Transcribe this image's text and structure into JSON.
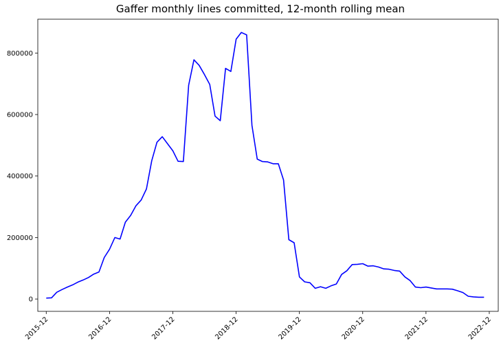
{
  "chart_data": {
    "type": "line",
    "title": "Gaffer monthly lines committed, 12-month rolling mean",
    "xlabel": "",
    "ylabel": "",
    "ylim": [
      -40000,
      910000
    ],
    "xlim_months": [
      -1.6,
      85.7
    ],
    "grid": false,
    "line_color": "#0000ff",
    "x_ticks": [
      {
        "label": "2015-12",
        "month": 0
      },
      {
        "label": "2016-12",
        "month": 12
      },
      {
        "label": "2017-12",
        "month": 24
      },
      {
        "label": "2018-12",
        "month": 36
      },
      {
        "label": "2019-12",
        "month": 48
      },
      {
        "label": "2020-12",
        "month": 60
      },
      {
        "label": "2021-12",
        "month": 72
      },
      {
        "label": "2022-12",
        "month": 84
      }
    ],
    "y_ticks": [
      0,
      200000,
      400000,
      600000,
      800000
    ],
    "series": [
      {
        "x": [
          "2015-12",
          "2016-01",
          "2016-02",
          "2016-03",
          "2016-04",
          "2016-05",
          "2016-06",
          "2016-07",
          "2016-08",
          "2016-09",
          "2016-10",
          "2016-11",
          "2016-12",
          "2017-01",
          "2017-02",
          "2017-03",
          "2017-04",
          "2017-05",
          "2017-06",
          "2017-07",
          "2017-08",
          "2017-09",
          "2017-10",
          "2017-11",
          "2017-12",
          "2018-01",
          "2018-02",
          "2018-03",
          "2018-04",
          "2018-05",
          "2018-06",
          "2018-07",
          "2018-08",
          "2018-09",
          "2018-10",
          "2018-11",
          "2018-12",
          "2019-01",
          "2019-02",
          "2019-03",
          "2019-04",
          "2019-05",
          "2019-06",
          "2019-07",
          "2019-08",
          "2019-09",
          "2019-10",
          "2019-11",
          "2019-12",
          "2020-01",
          "2020-02",
          "2020-03",
          "2020-04",
          "2020-05",
          "2020-06",
          "2020-07",
          "2020-08",
          "2020-09",
          "2020-10",
          "2020-11",
          "2020-12",
          "2021-01",
          "2021-02",
          "2021-03",
          "2021-04",
          "2021-05",
          "2021-06",
          "2021-07",
          "2021-08",
          "2021-09",
          "2021-10",
          "2021-11",
          "2021-12",
          "2022-01",
          "2022-02",
          "2022-03",
          "2022-04",
          "2022-05",
          "2022-06",
          "2022-07",
          "2022-08",
          "2022-09",
          "2022-10",
          "2022-11"
        ],
        "values": [
          3000,
          4000,
          22000,
          31000,
          39000,
          46000,
          55000,
          62000,
          70000,
          81000,
          88000,
          135000,
          162000,
          200000,
          195000,
          250000,
          272000,
          303000,
          322000,
          358000,
          450000,
          510000,
          528000,
          505000,
          482000,
          448000,
          447000,
          695000,
          778000,
          760000,
          730000,
          698000,
          595000,
          580000,
          750000,
          740000,
          845000,
          867000,
          859000,
          565000,
          455000,
          447000,
          446000,
          440000,
          440000,
          387000,
          193000,
          183000,
          72000,
          56000,
          53000,
          35000,
          40000,
          35000,
          43000,
          49000,
          80000,
          92000,
          112000,
          113000,
          115000,
          107000,
          108000,
          104000,
          98000,
          97000,
          93000,
          91000,
          72000,
          60000,
          39000,
          37000,
          39000,
          36000,
          33000,
          33000,
          33000,
          32000,
          27000,
          21000,
          9000,
          7000,
          6000,
          6000
        ]
      }
    ]
  }
}
